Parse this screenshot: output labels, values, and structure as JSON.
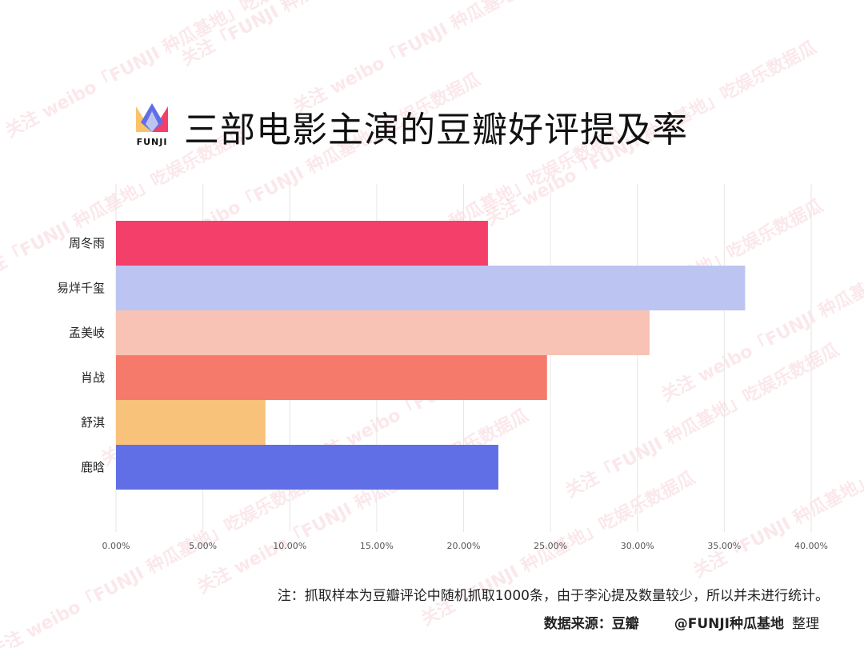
{
  "header": {
    "logo_text": "FUNJI",
    "title": "三部电影主演的豆瓣好评提及率"
  },
  "watermarks": [
    "关注 weibo「FUNJI 种瓜基地」吃娱乐数据瓜",
    "关注「FUNJI 种瓜基地」吃娱乐数据瓜",
    "关注 weibo「FUNJI 种瓜基地」吃娱乐数据瓜",
    "关注「FUNJI 种瓜基地」吃娱乐数据瓜",
    "关注 weibo「FUNJI 种瓜基地」吃娱乐数据瓜",
    "关注「FUNJI 种瓜基地」吃娱乐数据瓜"
  ],
  "colors": {
    "bars": [
      "#f43f6a",
      "#bcc5f2",
      "#f8c3b4",
      "#f67a6b",
      "#f9c27a",
      "#616fe6"
    ],
    "grid": "#e6e6e6",
    "axis_text": "#555555"
  },
  "chart_data": {
    "type": "bar",
    "orientation": "horizontal",
    "categories": [
      "周冬雨",
      "易烊千玺",
      "孟美岐",
      "肖战",
      "舒淇",
      "鹿晗"
    ],
    "values": [
      0.214,
      0.362,
      0.307,
      0.248,
      0.086,
      0.22
    ],
    "xlim": [
      0,
      0.4
    ],
    "xticks": [
      0,
      0.05,
      0.1,
      0.15,
      0.2,
      0.25,
      0.3,
      0.35,
      0.4
    ],
    "xtick_labels": [
      "0.00%",
      "5.00%",
      "10.00%",
      "15.00%",
      "20.00%",
      "25.00%",
      "30.00%",
      "35.00%",
      "40.00%"
    ],
    "grid": true,
    "legend": false
  },
  "footer": {
    "note": "注：抓取样本为豆瓣评论中随机抓取1000条，由于李沁提及数量较少，所以并未进行统计。",
    "source_label": "数据来源：豆瓣",
    "credit": "@FUNJI种瓜基地",
    "credit_suffix": "整理"
  }
}
